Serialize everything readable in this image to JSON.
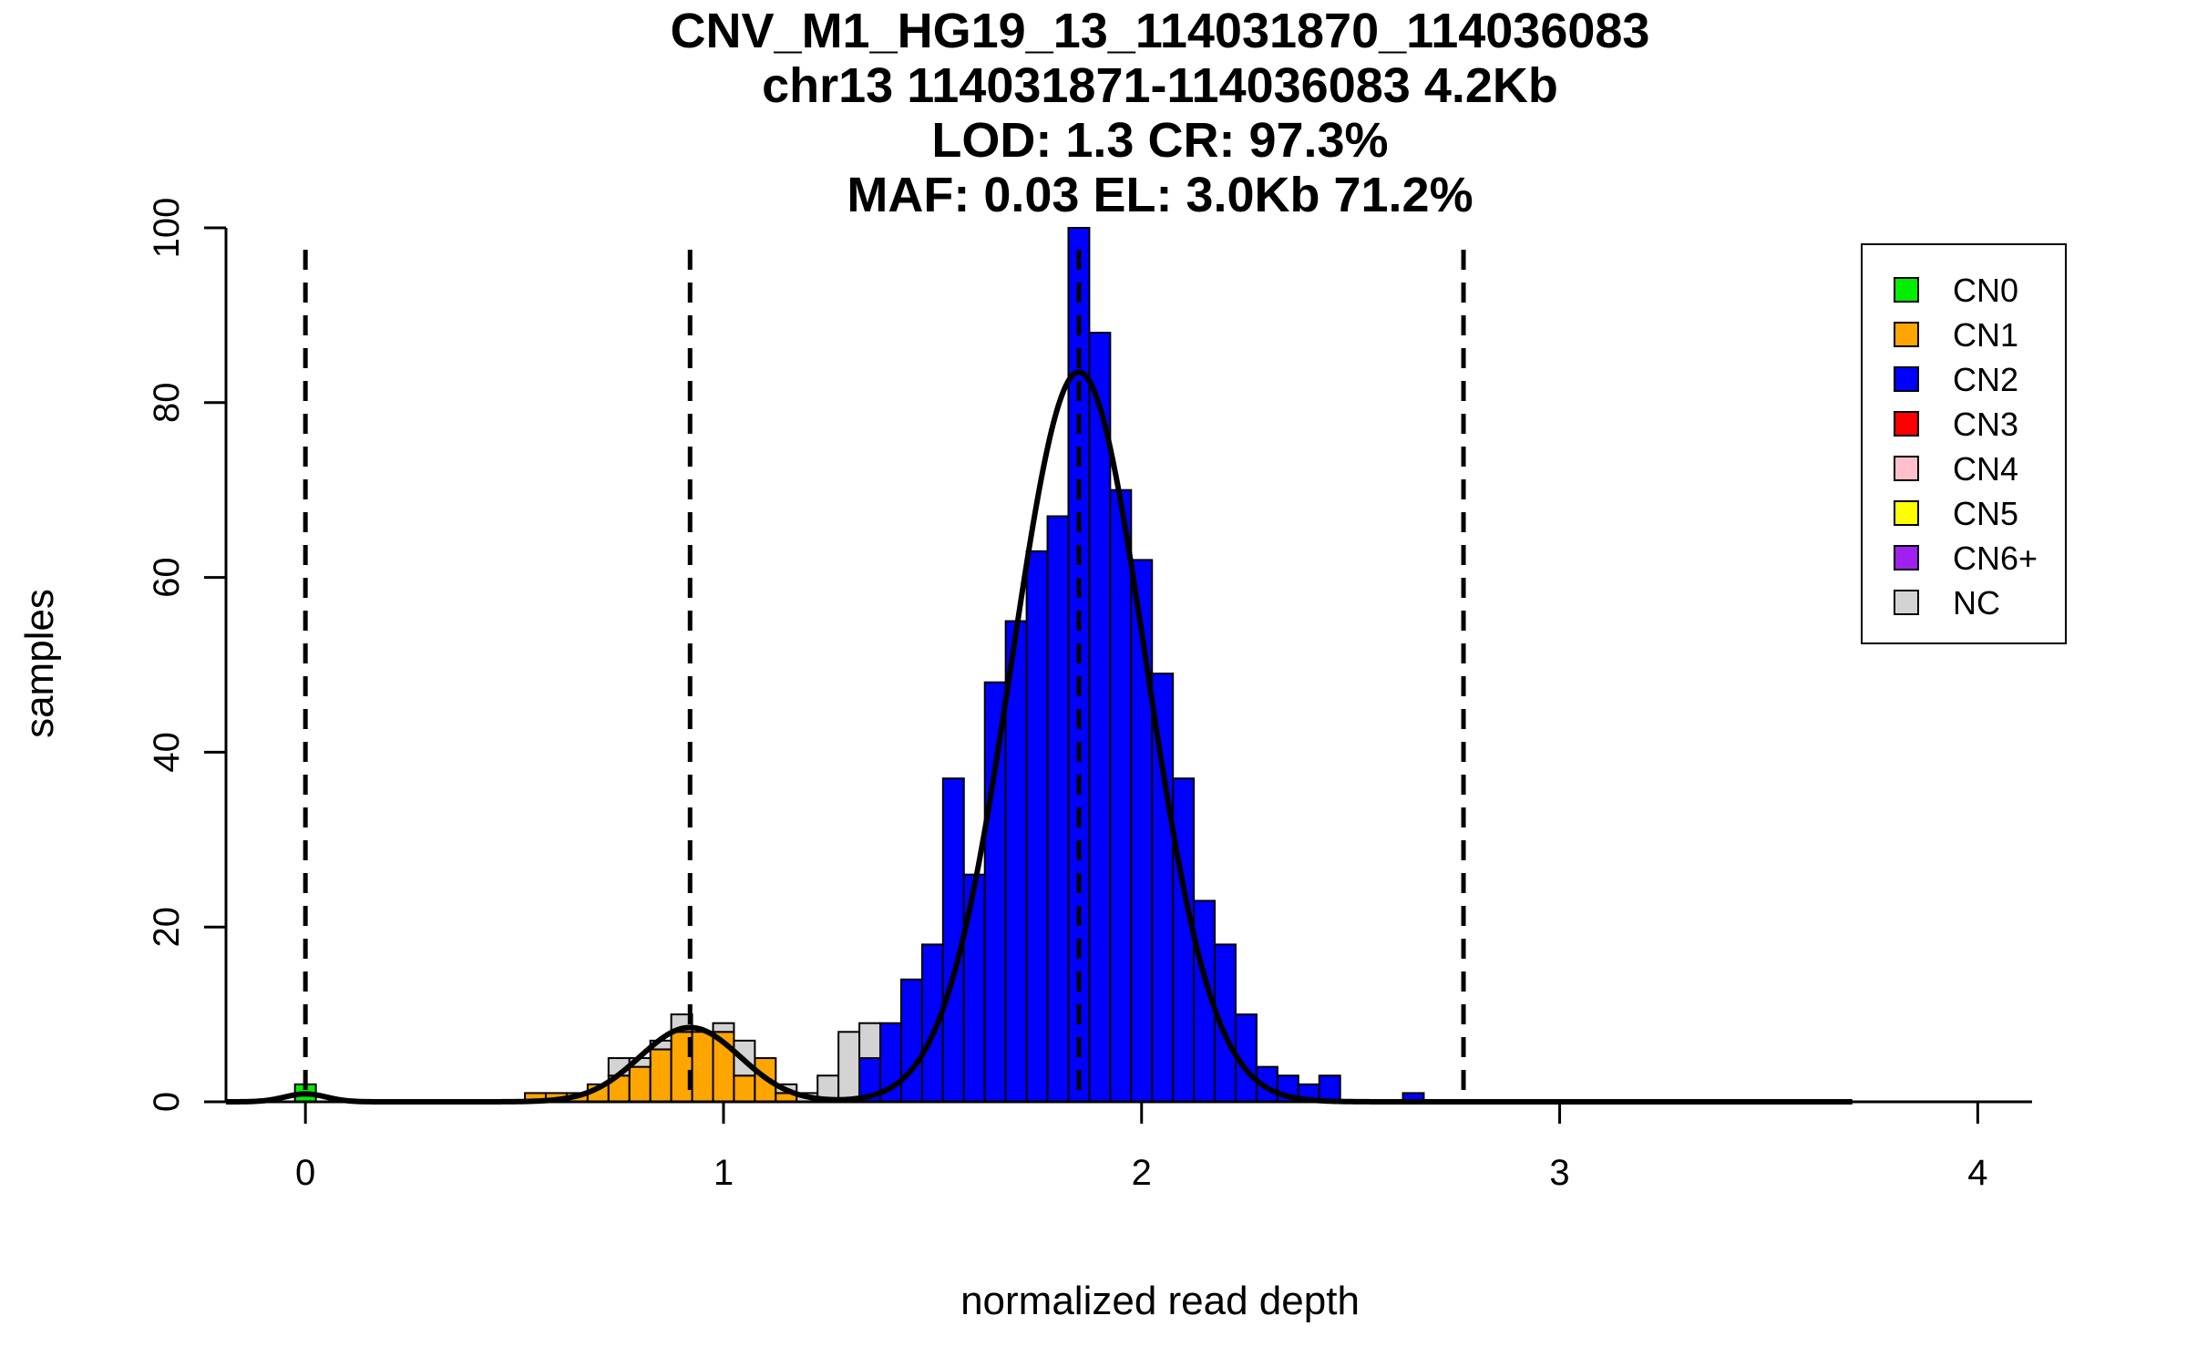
{
  "chart_data": {
    "type": "bar",
    "title_lines": [
      "CNV_M1_HG19_13_114031870_114036083",
      "chr13 114031871-114036083 4.2Kb",
      "LOD: 1.3 CR: 97.3%",
      "MAF: 0.03 EL: 3.0Kb 71.2%"
    ],
    "xlabel": "normalized read depth",
    "ylabel": "samples",
    "xlim": [
      -0.19,
      4.13
    ],
    "ylim": [
      0,
      100
    ],
    "x_ticks": [
      0,
      1,
      2,
      3,
      4
    ],
    "x_tick_labels": [
      "0",
      "1",
      "2",
      "3",
      "4"
    ],
    "y_ticks": [
      0,
      20,
      40,
      60,
      80,
      100
    ],
    "y_tick_labels": [
      "0",
      "20",
      "40",
      "60",
      "80",
      "100"
    ],
    "bin_width": 0.05,
    "bin_starts": [
      -0.025,
      0.525,
      0.575,
      0.625,
      0.675,
      0.725,
      0.775,
      0.825,
      0.875,
      0.925,
      0.975,
      1.025,
      1.075,
      1.125,
      1.175,
      1.225,
      1.275,
      1.325,
      1.375,
      1.425,
      1.475,
      1.525,
      1.575,
      1.625,
      1.675,
      1.725,
      1.775,
      1.825,
      1.875,
      1.925,
      1.975,
      2.025,
      2.075,
      2.125,
      2.175,
      2.225,
      2.275,
      2.325,
      2.375,
      2.425,
      2.625
    ],
    "series": [
      {
        "name": "CN0",
        "color": "#00ee00",
        "values": [
          2,
          0,
          0,
          0,
          0,
          0,
          0,
          0,
          0,
          0,
          0,
          0,
          0,
          0,
          0,
          0,
          0,
          0,
          0,
          0,
          0,
          0,
          0,
          0,
          0,
          0,
          0,
          0,
          0,
          0,
          0,
          0,
          0,
          0,
          0,
          0,
          0,
          0,
          0,
          0,
          0
        ]
      },
      {
        "name": "CN1",
        "color": "#ffa500",
        "values": [
          0,
          1,
          1,
          1,
          2,
          3,
          4,
          6,
          8,
          8,
          8,
          3,
          5,
          1,
          0,
          0,
          0,
          0,
          0,
          0,
          0,
          0,
          0,
          0,
          0,
          0,
          0,
          0,
          0,
          0,
          0,
          0,
          0,
          0,
          0,
          0,
          0,
          0,
          0,
          0,
          0
        ]
      },
      {
        "name": "CN2",
        "color": "#0000ff",
        "values": [
          0,
          0,
          0,
          0,
          0,
          0,
          0,
          0,
          0,
          0,
          0,
          0,
          0,
          0,
          0,
          0,
          0,
          5,
          9,
          14,
          18,
          37,
          26,
          48,
          55,
          63,
          67,
          100,
          88,
          70,
          62,
          49,
          37,
          23,
          18,
          10,
          4,
          3,
          2,
          3,
          1
        ]
      },
      {
        "name": "CN3",
        "color": "#ff0000",
        "values": []
      },
      {
        "name": "CN4",
        "color": "#ffc0cb",
        "values": []
      },
      {
        "name": "CN5",
        "color": "#ffff00",
        "values": []
      },
      {
        "name": "CN6+",
        "color": "#a020f0",
        "values": []
      },
      {
        "name": "NC",
        "color": "#d3d3d3",
        "values": [
          0,
          0,
          0,
          0,
          0,
          2,
          1,
          1,
          2,
          0,
          1,
          4,
          0,
          1,
          1,
          3,
          8,
          4,
          0,
          0,
          0,
          0,
          0,
          0,
          0,
          0,
          0,
          0,
          0,
          0,
          0,
          0,
          0,
          0,
          0,
          0,
          0,
          0,
          0,
          0,
          0
        ]
      }
    ],
    "fit_components": [
      {
        "mean": 0.0,
        "sd": 0.05,
        "peak": 0.9
      },
      {
        "mean": 0.92,
        "sd": 0.12,
        "peak": 8.5
      },
      {
        "mean": 1.85,
        "sd": 0.16,
        "peak": 83.5
      }
    ],
    "fit_line_range": [
      -0.19,
      3.7
    ],
    "dashed_lines_x": [
      0.0,
      0.92,
      1.85,
      2.77
    ],
    "legend": {
      "placement": "top-right",
      "entries": [
        {
          "label": "CN0",
          "color": "#00ee00"
        },
        {
          "label": "CN1",
          "color": "#ffa500"
        },
        {
          "label": "CN2",
          "color": "#0000ff"
        },
        {
          "label": "CN3",
          "color": "#ff0000"
        },
        {
          "label": "CN4",
          "color": "#ffc0cb"
        },
        {
          "label": "CN5",
          "color": "#ffff00"
        },
        {
          "label": "CN6+",
          "color": "#a020f0"
        },
        {
          "label": "NC",
          "color": "#d3d3d3"
        }
      ]
    },
    "grid": false
  }
}
